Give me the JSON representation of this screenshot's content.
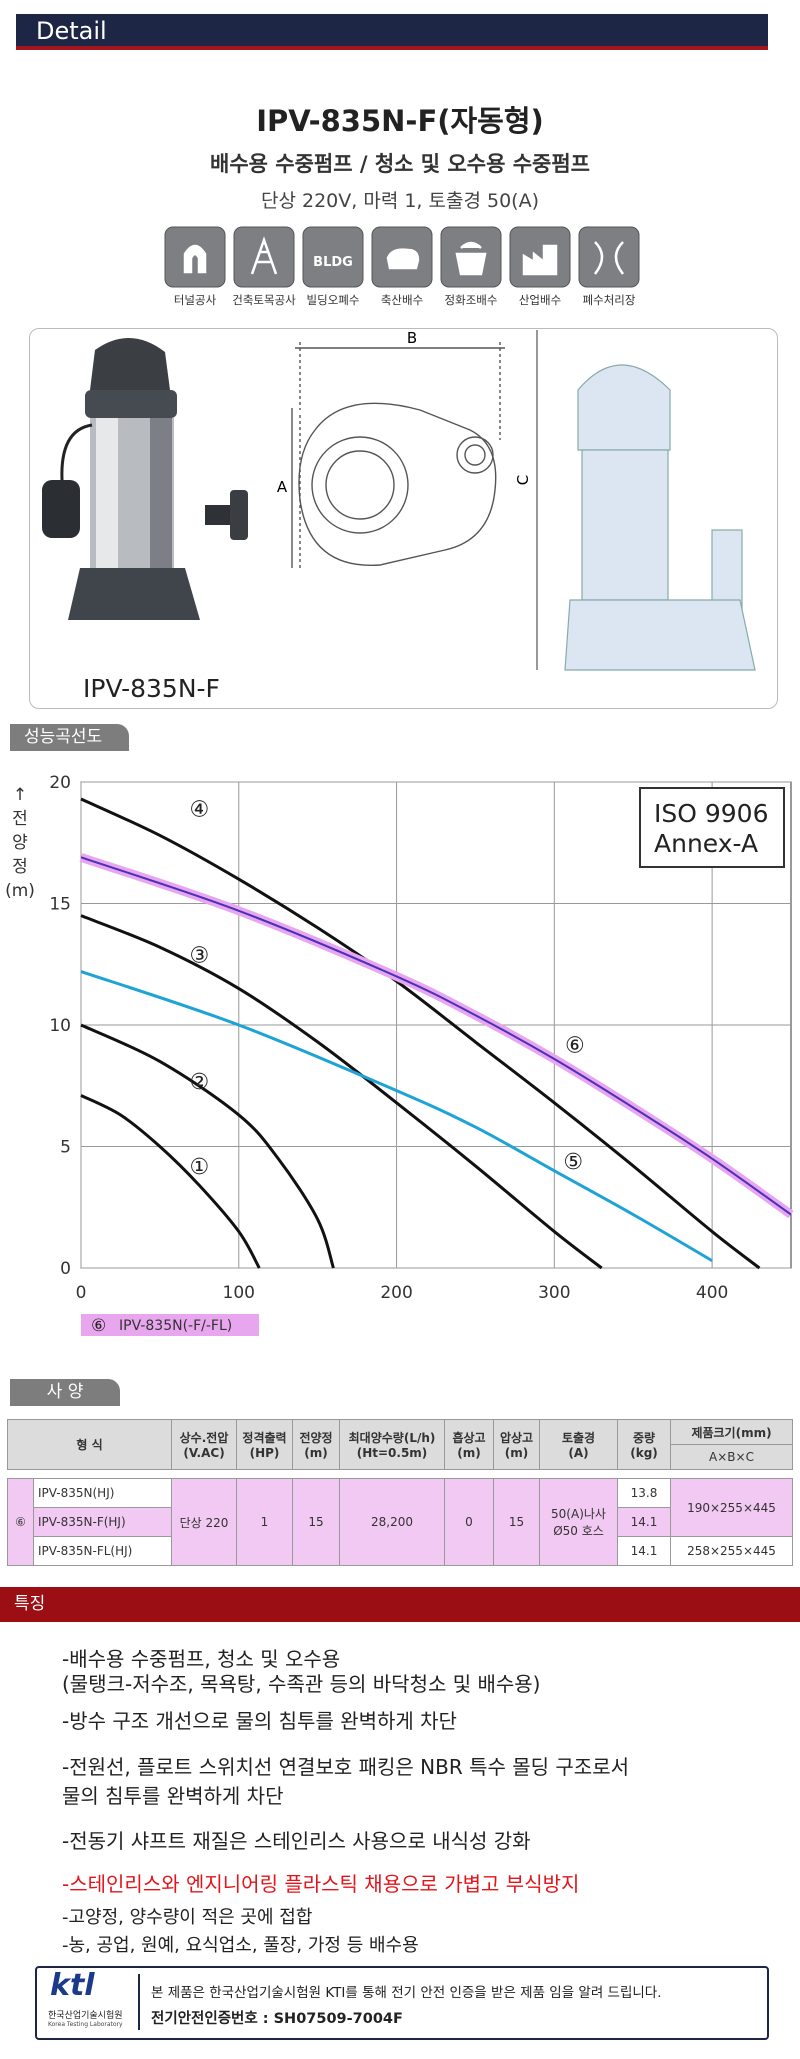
{
  "header": {
    "title": "Detail"
  },
  "product": {
    "title": "IPV-835N-F(자동형)",
    "subtitle": "배수용 수중펌프 / 청소 및 오수용 수중펌프",
    "spec": "단상 220V, 마력 1, 토출경 50(A)"
  },
  "icons": {
    "labels": [
      "터널공사",
      "건축토목공사",
      "빌딩오폐수",
      "축산배수",
      "정화조배수",
      "산업배수",
      "폐수처리장"
    ],
    "bldg": "BLDG"
  },
  "drawing": {
    "model": "IPV-835N-F",
    "dims": [
      "A",
      "B",
      "C"
    ]
  },
  "chart_section": "성능곡선도",
  "chart_data": {
    "type": "line",
    "ylabel": [
      "↑",
      "전",
      "양",
      "정",
      "(m)"
    ],
    "xlim": [
      0,
      450
    ],
    "ylim": [
      0,
      20
    ],
    "xticks": [
      0,
      100,
      200,
      300,
      400
    ],
    "yticks": [
      0,
      5,
      10,
      15,
      20
    ],
    "grid": true,
    "annotation": [
      "ISO 9906",
      "Annex-A"
    ],
    "legend_label": "IPV-835N(-F/-FL)",
    "series": [
      {
        "name": "①",
        "color": "#111111",
        "x": [
          0,
          25,
          50,
          75,
          100,
          113
        ],
        "values": [
          7.1,
          6.3,
          5.0,
          3.4,
          1.5,
          0
        ]
      },
      {
        "name": "②",
        "color": "#111111",
        "x": [
          0,
          50,
          100,
          125,
          150,
          160
        ],
        "values": [
          10.0,
          8.5,
          6.3,
          4.5,
          2.0,
          0
        ]
      },
      {
        "name": "③",
        "color": "#111111",
        "x": [
          0,
          50,
          100,
          150,
          200,
          250,
          300,
          330
        ],
        "values": [
          14.5,
          13.2,
          11.5,
          9.3,
          6.8,
          4.2,
          1.5,
          0
        ]
      },
      {
        "name": "④",
        "color": "#111111",
        "x": [
          0,
          50,
          100,
          150,
          200,
          250,
          300,
          350,
          400,
          430
        ],
        "values": [
          19.3,
          17.8,
          16.0,
          14.0,
          11.8,
          9.3,
          6.8,
          4.2,
          1.5,
          0
        ]
      },
      {
        "name": "⑤",
        "color": "#1ea3d6",
        "x": [
          0,
          100,
          200,
          250,
          300,
          350,
          400
        ],
        "values": [
          12.2,
          10.0,
          7.3,
          5.8,
          4.0,
          2.2,
          0.3
        ]
      },
      {
        "name": "⑥",
        "color": "#4b2fbd",
        "halo": "#e8a6ef",
        "x": [
          0,
          100,
          200,
          250,
          300,
          350,
          400,
          450
        ],
        "values": [
          16.9,
          14.7,
          12.0,
          10.4,
          8.6,
          6.6,
          4.5,
          2.2
        ]
      }
    ]
  },
  "spec_section": "사 양",
  "table": {
    "header": [
      [
        "형 식"
      ],
      [
        "상수.전압",
        "(V.AC)"
      ],
      [
        "정격출력",
        "(HP)"
      ],
      [
        "전양정",
        "(m)"
      ],
      [
        "최대양수량(L/h)",
        "(Ht=0.5m)"
      ],
      [
        "흡상고",
        "(m)"
      ],
      [
        "압상고",
        "(m)"
      ],
      [
        "토출경",
        "(A)"
      ],
      [
        "중량",
        "(kg)"
      ],
      [
        "제품크기(mm)"
      ]
    ],
    "size_sub": "A×B×C",
    "group": "⑥",
    "models": [
      "IPV-835N(HJ)",
      "IPV-835N-F(HJ)",
      "IPV-835N-FL(HJ)"
    ],
    "shared": [
      [
        "단상 220"
      ],
      [
        "1"
      ],
      [
        "15"
      ],
      [
        "28,200"
      ],
      [
        "0"
      ],
      [
        "15"
      ],
      [
        "50(A)나사",
        "Ø50 호스"
      ]
    ],
    "weights": [
      "13.8",
      "14.1",
      "14.1"
    ],
    "sizes": [
      "190×255×445",
      "258×255×445"
    ]
  },
  "features": {
    "title": "특징",
    "items": [
      {
        "lines": [
          "-배수용 수중펌프, 청소 및 오수용",
          " (물탱크-저수조, 목욕탕, 수족관 등의 바닥청소 및 배수용)"
        ]
      },
      {
        "lines": [
          "-방수 구조 개선으로 물의 침투를 완벽하게 차단"
        ]
      },
      {
        "lines": [
          "-전원선, 플로트 스위치선 연결보호 패킹은 NBR 특수 몰딩 구조로서",
          " 물의 침투를 완벽하게 차단"
        ]
      },
      {
        "lines": [
          "-전동기 샤프트 재질은 스테인리스 사용으로 내식성 강화"
        ]
      },
      {
        "lines": [
          "-스테인리스와 엔지니어링 플라스틱 채용으로 가볍고 부식방지"
        ],
        "color": "#e3151b"
      },
      {
        "lines": [
          "-고양정, 양수량이 적은 곳에 접합"
        ]
      },
      {
        "lines": [
          "-농, 공업, 원예, 요식업소, 풀장, 가정 등 배수용"
        ]
      }
    ]
  },
  "cert": {
    "logo": "ktl",
    "org": "한국산업기술시험원",
    "org_en": "Korea Testing Laboratory",
    "text": "본 제품은 한국산업기술시험원 KTI를 통해 전기 안전 인증을 받은 제품 임을 알려 드립니다.",
    "number": "전기안전인증번호 : SH07509-7004F"
  }
}
